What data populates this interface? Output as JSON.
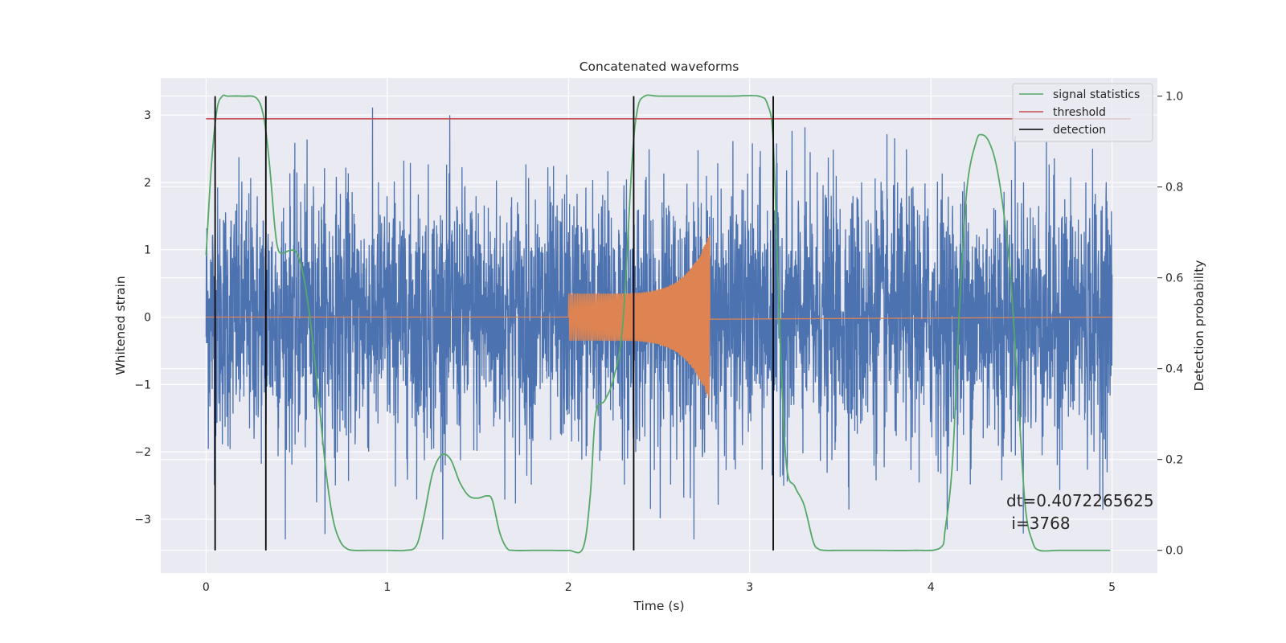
{
  "chart_data": {
    "type": "line",
    "title": "Concatenated waveforms",
    "xlabel": "Time (s)",
    "ylabel_left": "Whitened strain",
    "ylabel_right": "Detection probability",
    "xlim": [
      -0.25,
      5.25
    ],
    "ylim_left": [
      -3.8,
      3.55
    ],
    "ylim_right": [
      -0.05,
      1.04
    ],
    "x_ticks": [
      0,
      1,
      2,
      3,
      4,
      5
    ],
    "y_ticks_left": [
      -3,
      -2,
      -1,
      0,
      1,
      2,
      3
    ],
    "y_ticks_right": [
      0.0,
      0.2,
      0.4,
      0.6,
      0.8,
      1.0
    ],
    "x_tick_labels": [
      "0",
      "1",
      "2",
      "3",
      "4",
      "5"
    ],
    "y_tick_labels_left": [
      "−3",
      "−2",
      "−1",
      "0",
      "1",
      "2",
      "3"
    ],
    "y_tick_labels_right": [
      "0.0",
      "0.2",
      "0.4",
      "0.6",
      "0.8",
      "1.0"
    ],
    "grid": true,
    "style": "seaborn-darkgrid",
    "colors": {
      "noise": "#4c72b0",
      "chirp": "#dd8452",
      "signal_statistics": "#55a868",
      "threshold": "#c44e52",
      "detection": "#000000",
      "axes_bg": "#eaeaf2",
      "grid": "#ffffff"
    },
    "noise": {
      "x_range": [
        0,
        5
      ],
      "amplitude_envelope": [
        -3.3,
        3.2
      ]
    },
    "chirp": {
      "x_start": 2.0,
      "x_end": 2.78,
      "amplitude_start": 0.35,
      "amplitude_peak": 1.25
    },
    "series": [
      {
        "name": "signal statistics",
        "axis": "right",
        "x": [
          0.0,
          0.03,
          0.06,
          0.09,
          0.12,
          0.2,
          0.28,
          0.32,
          0.35,
          0.38,
          0.4,
          0.43,
          0.46,
          0.5,
          0.54,
          0.58,
          0.62,
          0.66,
          0.7,
          0.74,
          0.78,
          0.82,
          0.9,
          1.0,
          1.1,
          1.16,
          1.2,
          1.25,
          1.3,
          1.35,
          1.4,
          1.45,
          1.5,
          1.55,
          1.58,
          1.62,
          1.66,
          1.7,
          1.8,
          1.9,
          2.0,
          2.08,
          2.12,
          2.15,
          2.2,
          2.25,
          2.3,
          2.35,
          2.38,
          2.42,
          2.5,
          2.7,
          2.9,
          3.05,
          3.1,
          3.13,
          3.16,
          3.2,
          3.25,
          3.3,
          3.35,
          3.38,
          3.42,
          3.5,
          3.7,
          3.9,
          4.05,
          4.08,
          4.12,
          4.16,
          4.2,
          4.25,
          4.28,
          4.32,
          4.36,
          4.4,
          4.44,
          4.48,
          4.52,
          4.56,
          4.6,
          4.7,
          4.8,
          4.99
        ],
        "values": [
          0.65,
          0.85,
          0.97,
          1.0,
          1.0,
          1.0,
          0.995,
          0.95,
          0.85,
          0.71,
          0.66,
          0.655,
          0.66,
          0.655,
          0.6,
          0.49,
          0.34,
          0.18,
          0.07,
          0.02,
          0.003,
          0.0,
          0.0,
          0.0,
          0.0,
          0.01,
          0.07,
          0.17,
          0.21,
          0.2,
          0.15,
          0.12,
          0.115,
          0.12,
          0.11,
          0.04,
          0.005,
          0.0,
          0.0,
          0.0,
          0.0,
          0.005,
          0.12,
          0.3,
          0.33,
          0.38,
          0.5,
          0.85,
          0.97,
          1.0,
          1.0,
          1.0,
          1.0,
          1.0,
          0.98,
          0.9,
          0.55,
          0.2,
          0.14,
          0.1,
          0.02,
          0.003,
          0.0,
          0.0,
          0.0,
          0.0,
          0.005,
          0.05,
          0.2,
          0.55,
          0.8,
          0.9,
          0.915,
          0.9,
          0.85,
          0.75,
          0.6,
          0.35,
          0.1,
          0.02,
          0.0,
          0.0,
          0.0,
          0.0
        ]
      },
      {
        "name": "threshold",
        "axis": "right",
        "x": [
          0,
          5.1
        ],
        "values": [
          0.95,
          0.95
        ]
      },
      {
        "name": "detection",
        "axis": "right",
        "type": "vlines",
        "x": [
          0.05,
          0.33,
          2.36,
          3.13
        ],
        "ymin": 0.0,
        "ymax": 1.0
      }
    ],
    "annotation": "dt=0.4072265625\n i=3768",
    "legend": {
      "placement": "top-right",
      "entries": [
        "signal statistics",
        "threshold",
        "detection"
      ]
    }
  }
}
